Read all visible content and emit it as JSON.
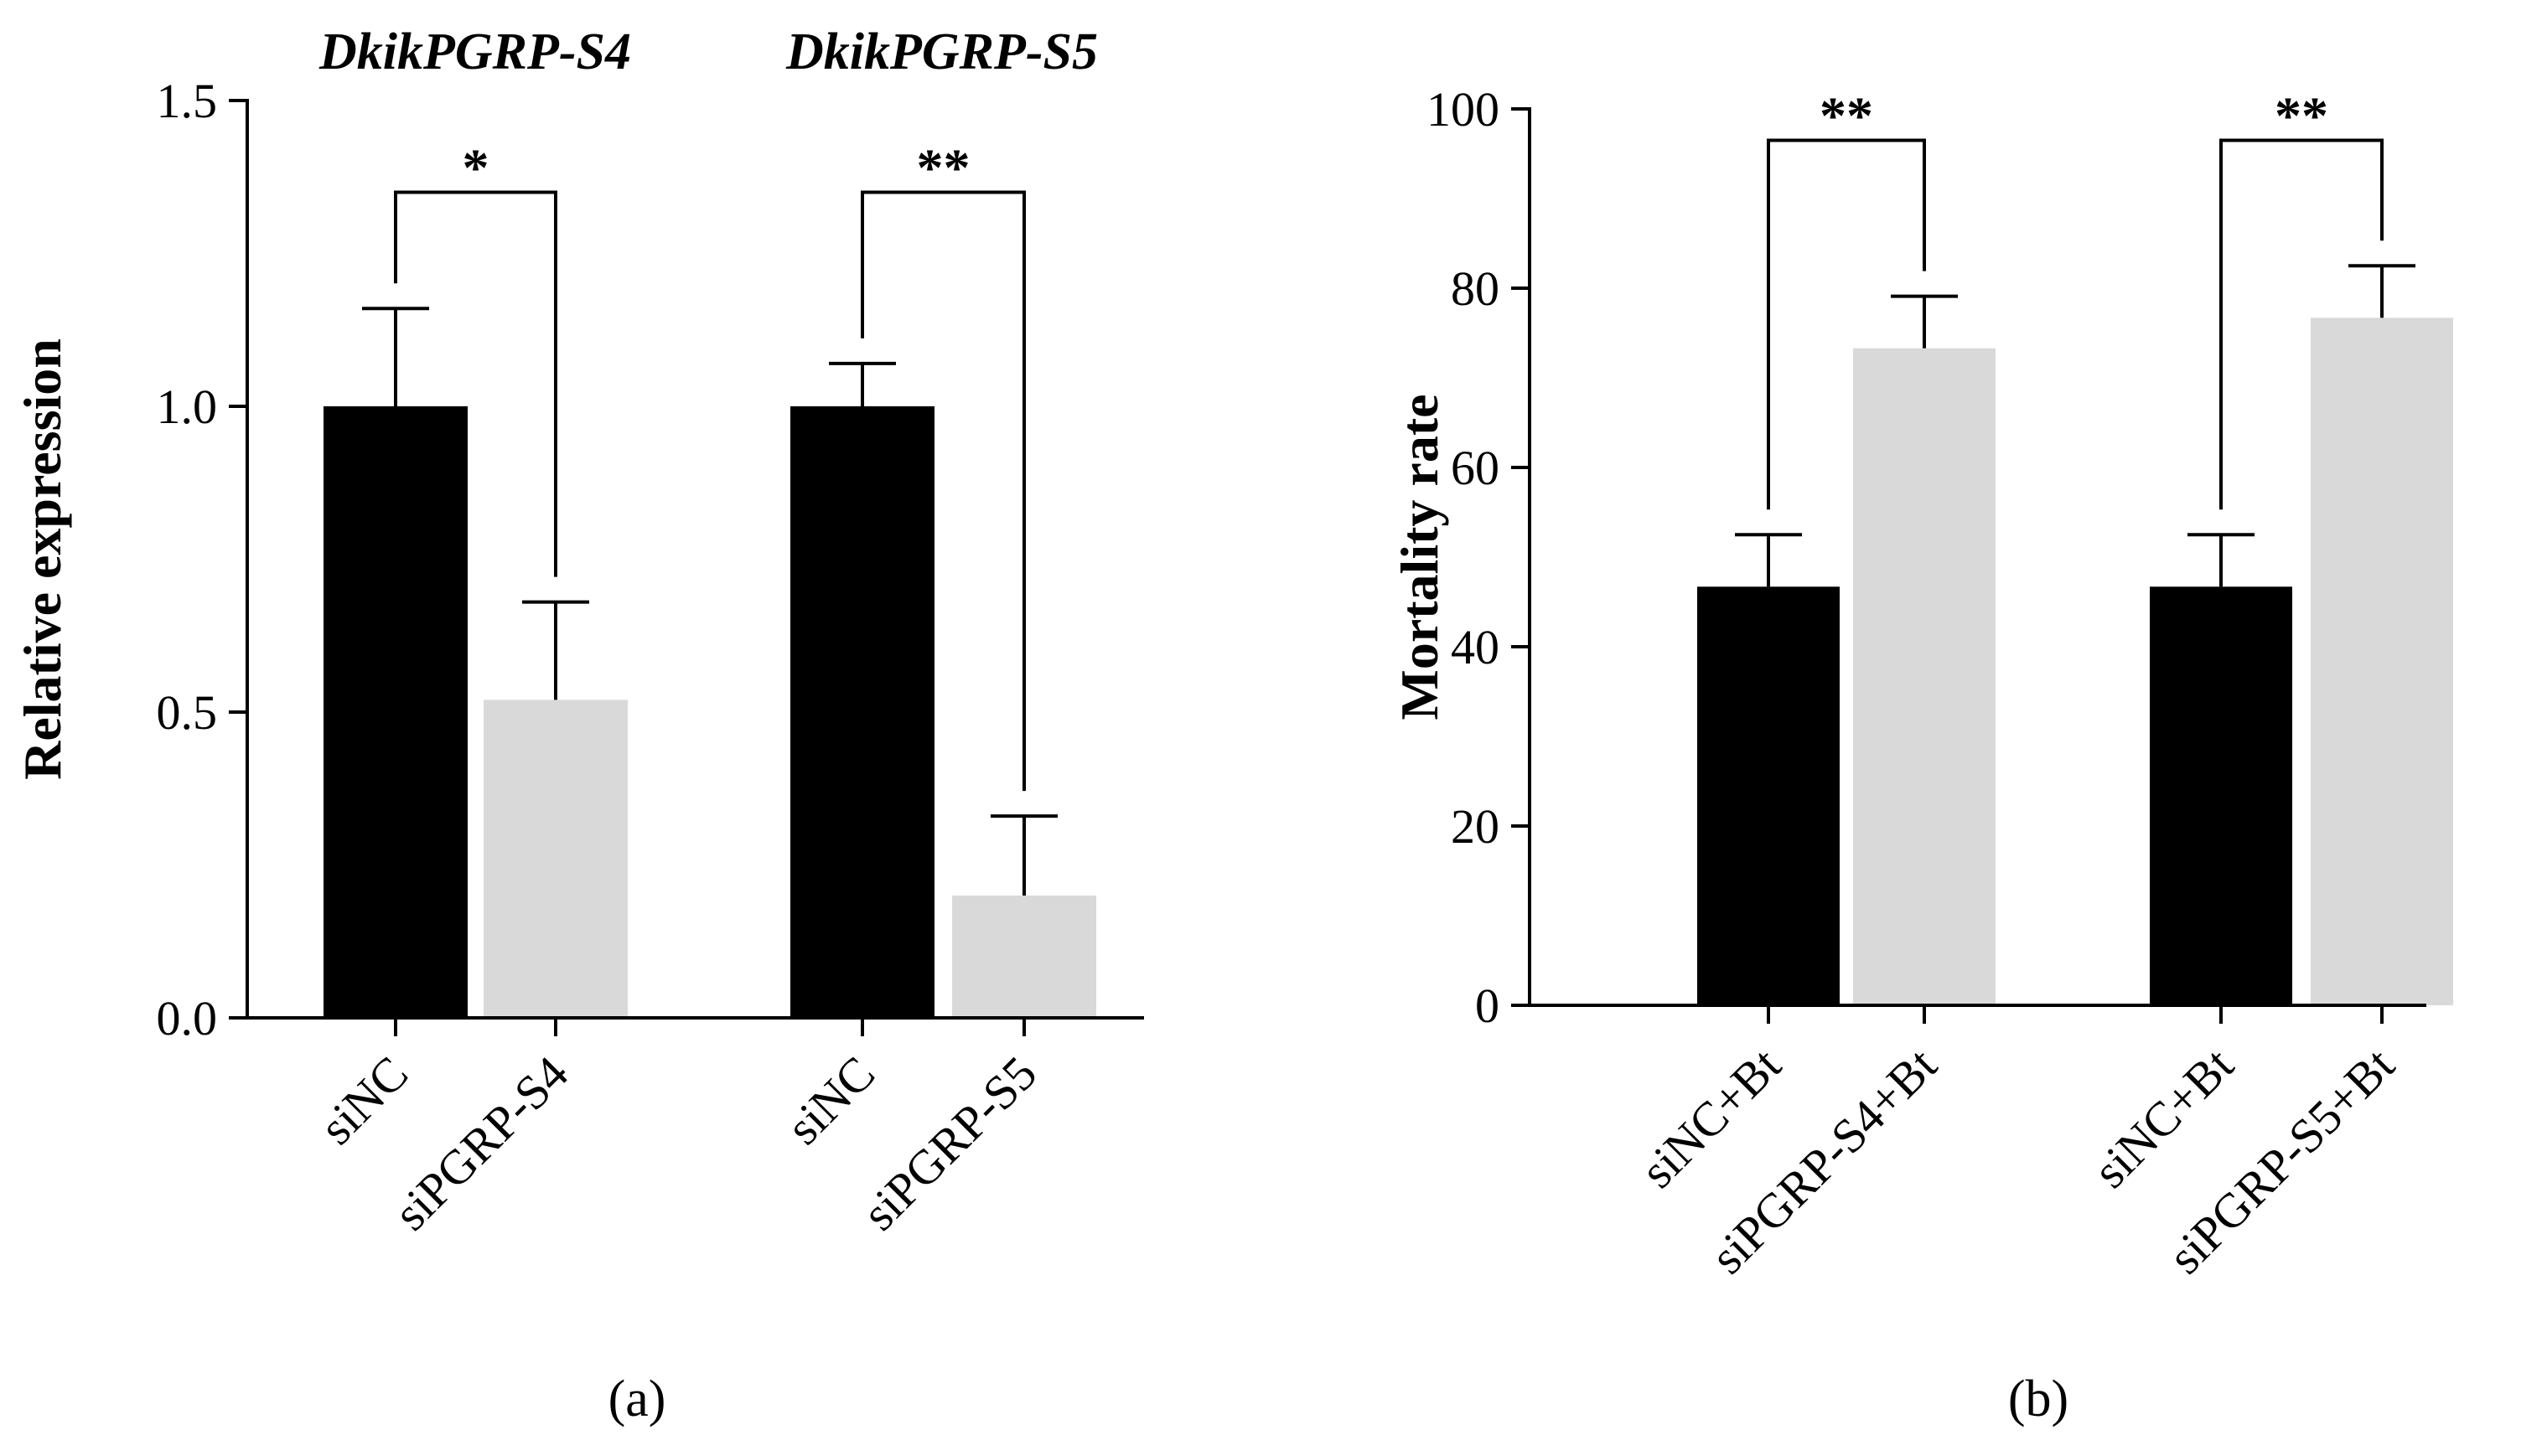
{
  "figure": {
    "colors": {
      "control": "#000000",
      "knockdown": "#d9d9d9",
      "axis": "#000000"
    }
  },
  "chart_data": [
    {
      "type": "bar",
      "panel_label": "(a)",
      "title": "",
      "ylabel": "Relative expression",
      "xlabel": "",
      "ylim": [
        0,
        1.5
      ],
      "yticks": [
        0.0,
        0.5,
        1.0,
        1.5
      ],
      "ytick_labels": [
        "0.0",
        "0.5",
        "1.0",
        "1.5"
      ],
      "categories": [
        "siNC",
        "siPGRP-S4",
        "siNC",
        "siPGRP-S5"
      ],
      "values": [
        1.0,
        0.52,
        1.0,
        0.2
      ],
      "errors": [
        0.16,
        0.16,
        0.07,
        0.13
      ],
      "bar_color_keys": [
        "control",
        "knockdown",
        "control",
        "knockdown"
      ],
      "groups": [
        {
          "title": "DkikPGRP-S4",
          "bars": [
            0,
            1
          ]
        },
        {
          "title": "DkikPGRP-S5",
          "bars": [
            2,
            3
          ]
        }
      ],
      "significance": [
        {
          "from": 0,
          "to": 1,
          "label": "*",
          "bracket_y": 1.35
        },
        {
          "from": 2,
          "to": 3,
          "label": "**",
          "bracket_y": 1.35
        }
      ]
    },
    {
      "type": "bar",
      "panel_label": "(b)",
      "title": "",
      "ylabel": "Mortality rate",
      "xlabel": "",
      "ylim": [
        0,
        100
      ],
      "yticks": [
        0,
        20,
        40,
        60,
        80,
        100
      ],
      "ytick_labels": [
        "0",
        "20",
        "40",
        "60",
        "80",
        "100"
      ],
      "categories": [
        "siNC+Bt",
        "siPGRP-S4+Bt",
        "siNC+Bt",
        "siPGRP-S5+Bt"
      ],
      "values": [
        46.7,
        73.3,
        46.7,
        76.7
      ],
      "errors": [
        5.8,
        5.8,
        5.8,
        5.8
      ],
      "bar_color_keys": [
        "control",
        "knockdown",
        "control",
        "knockdown"
      ],
      "groups": [],
      "significance": [
        {
          "from": 0,
          "to": 1,
          "label": "**",
          "bracket_y": 96.5
        },
        {
          "from": 2,
          "to": 3,
          "label": "**",
          "bracket_y": 96.5
        }
      ]
    }
  ]
}
